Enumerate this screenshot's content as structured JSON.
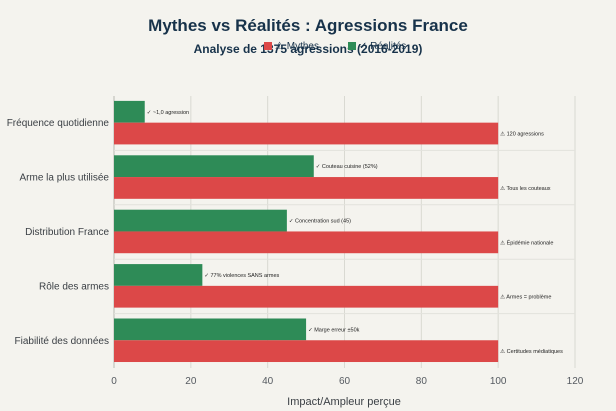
{
  "chart_data": {
    "type": "bar",
    "orientation": "horizontal",
    "title": "Mythes vs Réalités : Agressions France",
    "subtitle": "Analyse de 1375 agressions (2016-2019)",
    "xlabel": "Impact/Ampleur perçue",
    "xlim": [
      0,
      120
    ],
    "xticks": [
      "0",
      "20",
      "40",
      "60",
      "80",
      "100",
      "120"
    ],
    "categories": [
      "Fréquence quotidienne",
      "Arme la plus utilisée",
      "Distribution France",
      "Rôle des armes",
      "Fiabilité des données"
    ],
    "series": [
      {
        "name": "Réalités",
        "color": "#2e8b57",
        "values": [
          8,
          52,
          45,
          23,
          50
        ],
        "labels": [
          "✓ ~1,0 agression",
          "✓ Couteau cuisine (52%)",
          "✓ Concentration sud (45)",
          "✓ 77% violences SANS armes",
          "✓ Marge erreur ±50k"
        ]
      },
      {
        "name": "Mythes",
        "color": "#dc4848",
        "values": [
          100,
          100,
          100,
          100,
          100
        ],
        "labels": [
          "⚠ 120 agressions",
          "⚠ Tous les couteaux",
          "⚠ Épidémie nationale",
          "⚠ Armes = problème",
          "⚠ Certitudes médiatiques"
        ]
      }
    ],
    "legend": {
      "placement": "top-center",
      "items": [
        {
          "name": "⚠ Mythes",
          "color": "#dc4848"
        },
        {
          "name": "✓ Réalités",
          "color": "#2e8b57"
        }
      ]
    },
    "grid": true
  }
}
